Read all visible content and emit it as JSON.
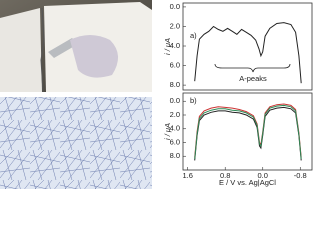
{
  "chart_data": [
    {
      "type": "line",
      "panel": "a)",
      "ylabel": "i / μA",
      "annotation": "A-peaks",
      "xlim": [
        1.7,
        -1.05
      ],
      "ylim": [
        8.5,
        -0.4
      ],
      "yticks": [
        {
          "value": 0,
          "label": "0.0"
        },
        {
          "value": 2,
          "label": "2.0"
        },
        {
          "value": 4,
          "label": "4.0"
        },
        {
          "value": 6,
          "label": "6.0"
        },
        {
          "value": 8,
          "label": "8.0"
        }
      ],
      "x": [
        1.45,
        1.4,
        1.35,
        1.25,
        1.15,
        1.05,
        0.95,
        0.85,
        0.75,
        0.65,
        0.55,
        0.45,
        0.35,
        0.25,
        0.15,
        0.08,
        0.04,
        0.0,
        -0.05,
        -0.15,
        -0.3,
        -0.45,
        -0.6,
        -0.7,
        -0.77,
        -0.82
      ],
      "series": [
        {
          "color": "#222222",
          "values": [
            7.6,
            5.0,
            3.3,
            2.8,
            2.5,
            2.0,
            2.3,
            2.5,
            2.2,
            2.5,
            2.8,
            2.3,
            2.6,
            2.9,
            3.4,
            4.3,
            5.0,
            4.6,
            3.0,
            2.2,
            1.7,
            1.6,
            1.8,
            2.6,
            5.0,
            7.8
          ]
        }
      ]
    },
    {
      "type": "line",
      "panel": "b)",
      "ylabel": "i / μA",
      "xlabel": "E / V vs. Ag|AgCl",
      "xlim": [
        1.7,
        -1.05
      ],
      "ylim": [
        10.0,
        -1.2
      ],
      "xticks": [
        1.6,
        0.8,
        {
          "value": 0,
          "label": "0.0"
        },
        -0.8
      ],
      "yticks": [
        {
          "value": 0,
          "label": "0.0"
        },
        {
          "value": 2,
          "label": "2.0"
        },
        {
          "value": 4,
          "label": "4.0"
        },
        {
          "value": 6,
          "label": "6.0"
        },
        {
          "value": 8,
          "label": "8.0"
        }
      ],
      "x": [
        1.45,
        1.4,
        1.35,
        1.25,
        1.1,
        0.95,
        0.8,
        0.65,
        0.5,
        0.35,
        0.2,
        0.12,
        0.07,
        0.04,
        0.0,
        -0.05,
        -0.15,
        -0.3,
        -0.45,
        -0.6,
        -0.7,
        -0.77,
        -0.82
      ],
      "series": [
        {
          "color": "#222222",
          "values": [
            8.6,
            5.0,
            2.8,
            2.0,
            1.6,
            1.4,
            1.4,
            1.6,
            1.7,
            2.0,
            2.6,
            3.8,
            6.5,
            6.8,
            5.0,
            2.2,
            1.3,
            1.0,
            0.9,
            1.1,
            1.7,
            5.0,
            8.6
          ]
        },
        {
          "color": "#cc3333",
          "values": [
            8.2,
            4.4,
            2.2,
            1.4,
            1.0,
            0.8,
            0.9,
            1.0,
            1.2,
            1.5,
            2.1,
            3.3,
            6.0,
            6.3,
            4.5,
            1.7,
            0.8,
            0.5,
            0.4,
            0.6,
            1.2,
            4.6,
            8.2
          ]
        },
        {
          "color": "#2e8b57",
          "values": [
            8.4,
            4.7,
            2.5,
            1.7,
            1.3,
            1.1,
            1.1,
            1.3,
            1.4,
            1.7,
            2.3,
            3.5,
            6.2,
            6.5,
            4.7,
            1.9,
            1.0,
            0.7,
            0.6,
            0.8,
            1.4,
            4.8,
            8.4
          ]
        }
      ]
    }
  ]
}
